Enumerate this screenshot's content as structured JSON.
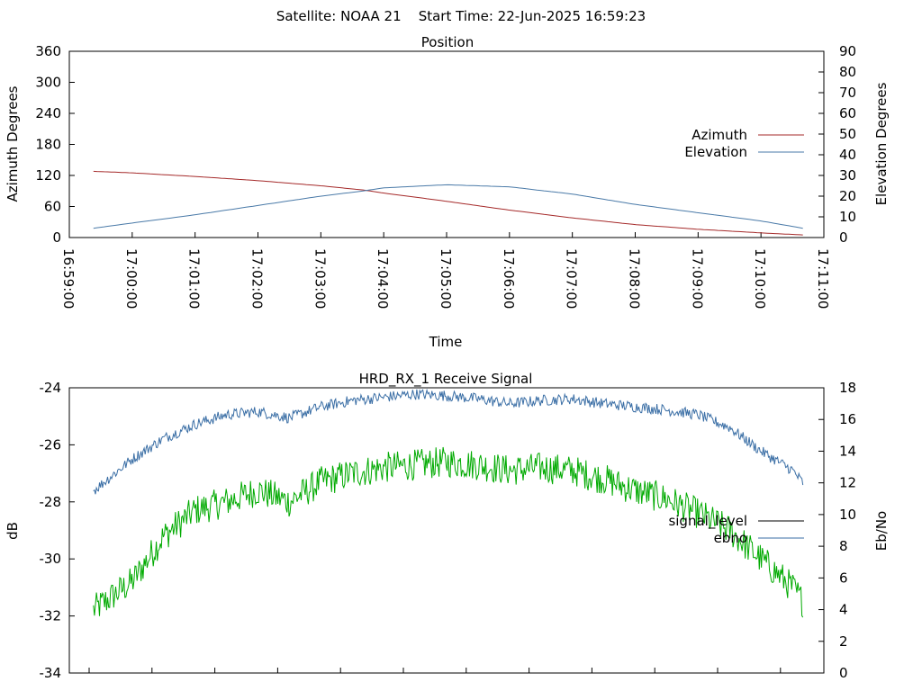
{
  "header": {
    "text": "Satellite: NOAA 21    Start Time: 22-Jun-2025 16:59:23"
  },
  "colors": {
    "azimuth": "#a52a2a",
    "elevation": "#4a7aa8",
    "signal_level": "#00aa00",
    "ebno": "#3a6ea5",
    "signal_legend": "#000000"
  },
  "chart_data": [
    {
      "type": "line",
      "title": "Position",
      "xlabel": "Time",
      "ylabel": "Azimuth Degrees",
      "y2label": "Elevation Degrees",
      "xlim": [
        "16:59:00",
        "17:11:00"
      ],
      "ylim": [
        0,
        360
      ],
      "y2lim": [
        0,
        90
      ],
      "x_ticks": [
        "16:59:00",
        "17:00:00",
        "17:01:00",
        "17:02:00",
        "17:03:00",
        "17:04:00",
        "17:05:00",
        "17:06:00",
        "17:07:00",
        "17:08:00",
        "17:09:00",
        "17:10:00",
        "17:11:00"
      ],
      "y_ticks": [
        "0",
        "60",
        "120",
        "180",
        "240",
        "300",
        "360"
      ],
      "y2_ticks": [
        "0",
        "10",
        "20",
        "30",
        "40",
        "50",
        "60",
        "70",
        "80",
        "90"
      ],
      "legend_position": "right",
      "x": [
        "16:59:23",
        "17:00:00",
        "17:01:00",
        "17:02:00",
        "17:03:00",
        "17:03:40",
        "17:04:00",
        "17:05:00",
        "17:06:00",
        "17:07:00",
        "17:08:00",
        "17:09:00",
        "17:10:00",
        "17:10:40"
      ],
      "series": [
        {
          "name": "Azimuth",
          "axis": "left",
          "values": [
            128,
            125,
            118,
            110,
            100,
            92,
            86,
            70,
            53,
            38,
            25,
            16,
            9,
            5
          ]
        },
        {
          "name": "Elevation",
          "axis": "right",
          "values": [
            4.5,
            7,
            11,
            15.5,
            20,
            22.5,
            24,
            25.5,
            24.5,
            21,
            16,
            12,
            8,
            4.5
          ]
        }
      ]
    },
    {
      "type": "line",
      "title": "HRD_RX_1 Receive Signal",
      "xlabel": "",
      "ylabel": "dB",
      "y2label": "Eb/No",
      "xlim": [
        "16:59:00",
        "17:11:00"
      ],
      "ylim": [
        -34,
        -24
      ],
      "y2lim": [
        0,
        18
      ],
      "y_ticks": [
        "-34",
        "-32",
        "-30",
        "-28",
        "-26",
        "-24"
      ],
      "y2_ticks": [
        "0",
        "2",
        "4",
        "6",
        "8",
        "10",
        "12",
        "14",
        "16",
        "18"
      ],
      "legend_position": "right",
      "x": [
        "16:59:23",
        "17:00:00",
        "17:00:30",
        "17:01:00",
        "17:01:30",
        "17:02:00",
        "17:02:30",
        "17:03:00",
        "17:03:30",
        "17:04:00",
        "17:04:30",
        "17:05:00",
        "17:05:30",
        "17:06:00",
        "17:06:30",
        "17:07:00",
        "17:07:30",
        "17:08:00",
        "17:08:30",
        "17:09:00",
        "17:09:30",
        "17:10:00",
        "17:10:30",
        "17:10:40"
      ],
      "series": [
        {
          "name": "signal_level",
          "axis": "left",
          "values": [
            -31.8,
            -30.8,
            -29.2,
            -28.3,
            -28.0,
            -27.6,
            -28.0,
            -27.3,
            -27.0,
            -26.8,
            -26.7,
            -26.6,
            -26.7,
            -26.9,
            -26.8,
            -26.9,
            -27.2,
            -27.6,
            -27.9,
            -28.4,
            -29.0,
            -30.0,
            -31.0,
            -31.5
          ]
        },
        {
          "name": "ebno",
          "axis": "right",
          "values": [
            11.5,
            13.5,
            14.8,
            15.7,
            16.3,
            16.5,
            16.1,
            16.8,
            17.2,
            17.4,
            17.6,
            17.5,
            17.3,
            17.0,
            17.2,
            17.3,
            17.0,
            16.8,
            16.6,
            16.3,
            15.5,
            14.0,
            12.8,
            12.0
          ]
        }
      ]
    }
  ]
}
